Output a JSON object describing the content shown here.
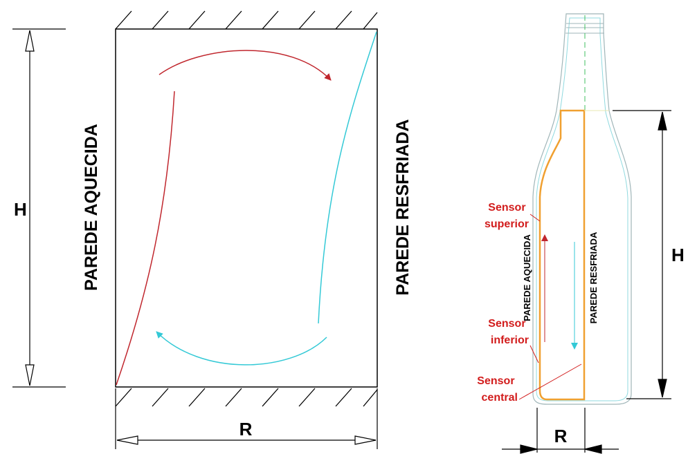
{
  "left": {
    "height_label": "H",
    "width_label": "R",
    "hot_wall": "PAREDE AQUECIDA",
    "cold_wall": "PAREDE RESFRIADA"
  },
  "bottle": {
    "height_label": "H",
    "width_label": "R",
    "hot_wall": "PAREDE AQUECIDA",
    "cold_wall": "PAREDE RESFRIADA",
    "sensors": {
      "top": [
        "Sensor",
        "superior"
      ],
      "bottom": [
        "Sensor",
        "inferior"
      ],
      "center": [
        "Sensor",
        "central"
      ]
    }
  },
  "colors": {
    "hot": "#c0262d",
    "cold": "#33c9d6",
    "liquid": "#f0a030",
    "sensor_text": "#d21c1c"
  }
}
